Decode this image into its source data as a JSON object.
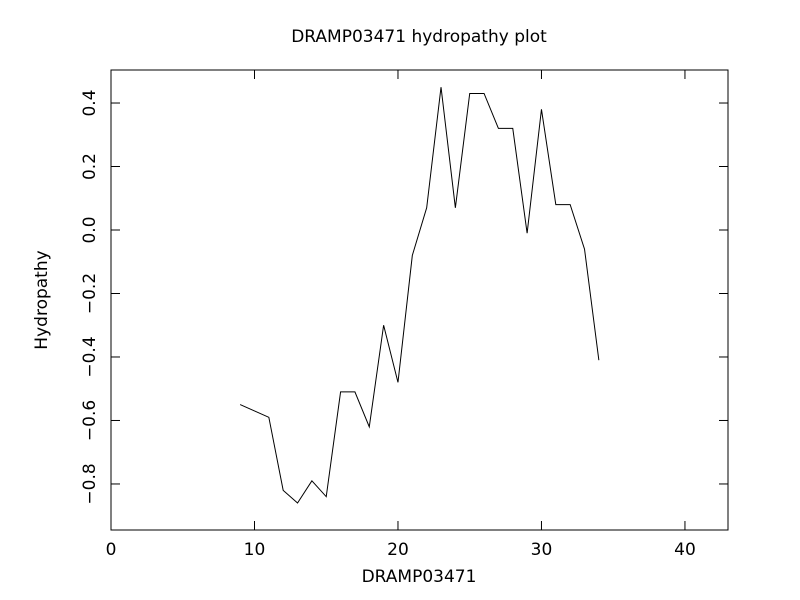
{
  "chart_data": {
    "type": "line",
    "title": "DRAMP03471 hydropathy plot",
    "x_label": "DRAMP03471",
    "y_label": "Hydropathy",
    "x": [
      9,
      10,
      11,
      12,
      13,
      14,
      15,
      16,
      17,
      18,
      19,
      20,
      21,
      22,
      23,
      24,
      25,
      26,
      27,
      28,
      29,
      30,
      31,
      32,
      33,
      34
    ],
    "series": [
      {
        "name": "Hydropathy",
        "color": "#000000",
        "values": [
          -0.55,
          -0.57,
          -0.59,
          -0.82,
          -0.86,
          -0.79,
          -0.84,
          -0.51,
          -0.51,
          -0.62,
          -0.3,
          -0.48,
          -0.08,
          0.07,
          0.45,
          0.07,
          0.43,
          0.43,
          0.32,
          0.32,
          -0.01,
          0.38,
          0.08,
          0.08,
          -0.06,
          -0.41
        ]
      }
    ],
    "xlim": [
      0,
      43
    ],
    "xticks": [
      0,
      10,
      20,
      30,
      40
    ],
    "ylim": [
      -0.945,
      0.504
    ],
    "yticks": [
      {
        "value": -0.8,
        "label": "−0.8"
      },
      {
        "value": -0.6,
        "label": "−0.6"
      },
      {
        "value": -0.4,
        "label": "−0.4"
      },
      {
        "value": -0.2,
        "label": "−0.2"
      },
      {
        "value": 0,
        "label": "0.0"
      },
      0.2,
      0.4
    ],
    "grid": false
  }
}
